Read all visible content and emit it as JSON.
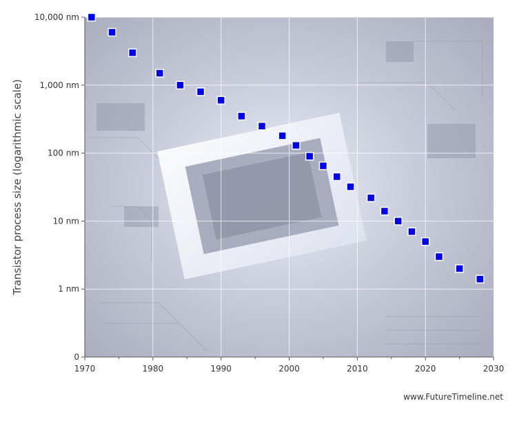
{
  "chart_data": {
    "type": "scatter",
    "ylabel": "Transistor process size (logarithmic scale)",
    "xlabel": "",
    "x_scale": "linear",
    "y_scale": "log",
    "xlim": [
      1970,
      2030
    ],
    "ylim_nm": [
      0.1,
      10000
    ],
    "x_ticks": [
      1970,
      1980,
      1990,
      2000,
      2010,
      2020,
      2030
    ],
    "y_ticks": [
      {
        "value": 10000,
        "label": "10,000 nm"
      },
      {
        "value": 1000,
        "label": "1,000 nm"
      },
      {
        "value": 100,
        "label": "100 nm"
      },
      {
        "value": 10,
        "label": "10 nm"
      },
      {
        "value": 1,
        "label": "1 nm"
      },
      {
        "value": 0.1,
        "label": "0"
      }
    ],
    "grid": true,
    "marker_color": "#0000ee",
    "series": [
      {
        "points": [
          [
            1971,
            10000
          ],
          [
            1974,
            6000
          ],
          [
            1977,
            3000
          ],
          [
            1981,
            1500
          ],
          [
            1984,
            1000
          ],
          [
            1987,
            800
          ],
          [
            1990,
            600
          ],
          [
            1993,
            350
          ],
          [
            1996,
            250
          ],
          [
            1999,
            180
          ],
          [
            2001,
            130
          ],
          [
            2003,
            90
          ],
          [
            2005,
            65
          ],
          [
            2007,
            45
          ],
          [
            2009,
            32
          ],
          [
            2012,
            22
          ],
          [
            2014,
            14
          ],
          [
            2016,
            10
          ],
          [
            2018,
            7
          ],
          [
            2020,
            5
          ],
          [
            2022,
            3
          ],
          [
            2025,
            2
          ],
          [
            2028,
            1.4
          ]
        ]
      }
    ]
  },
  "credit": "www.FutureTimeline.net"
}
